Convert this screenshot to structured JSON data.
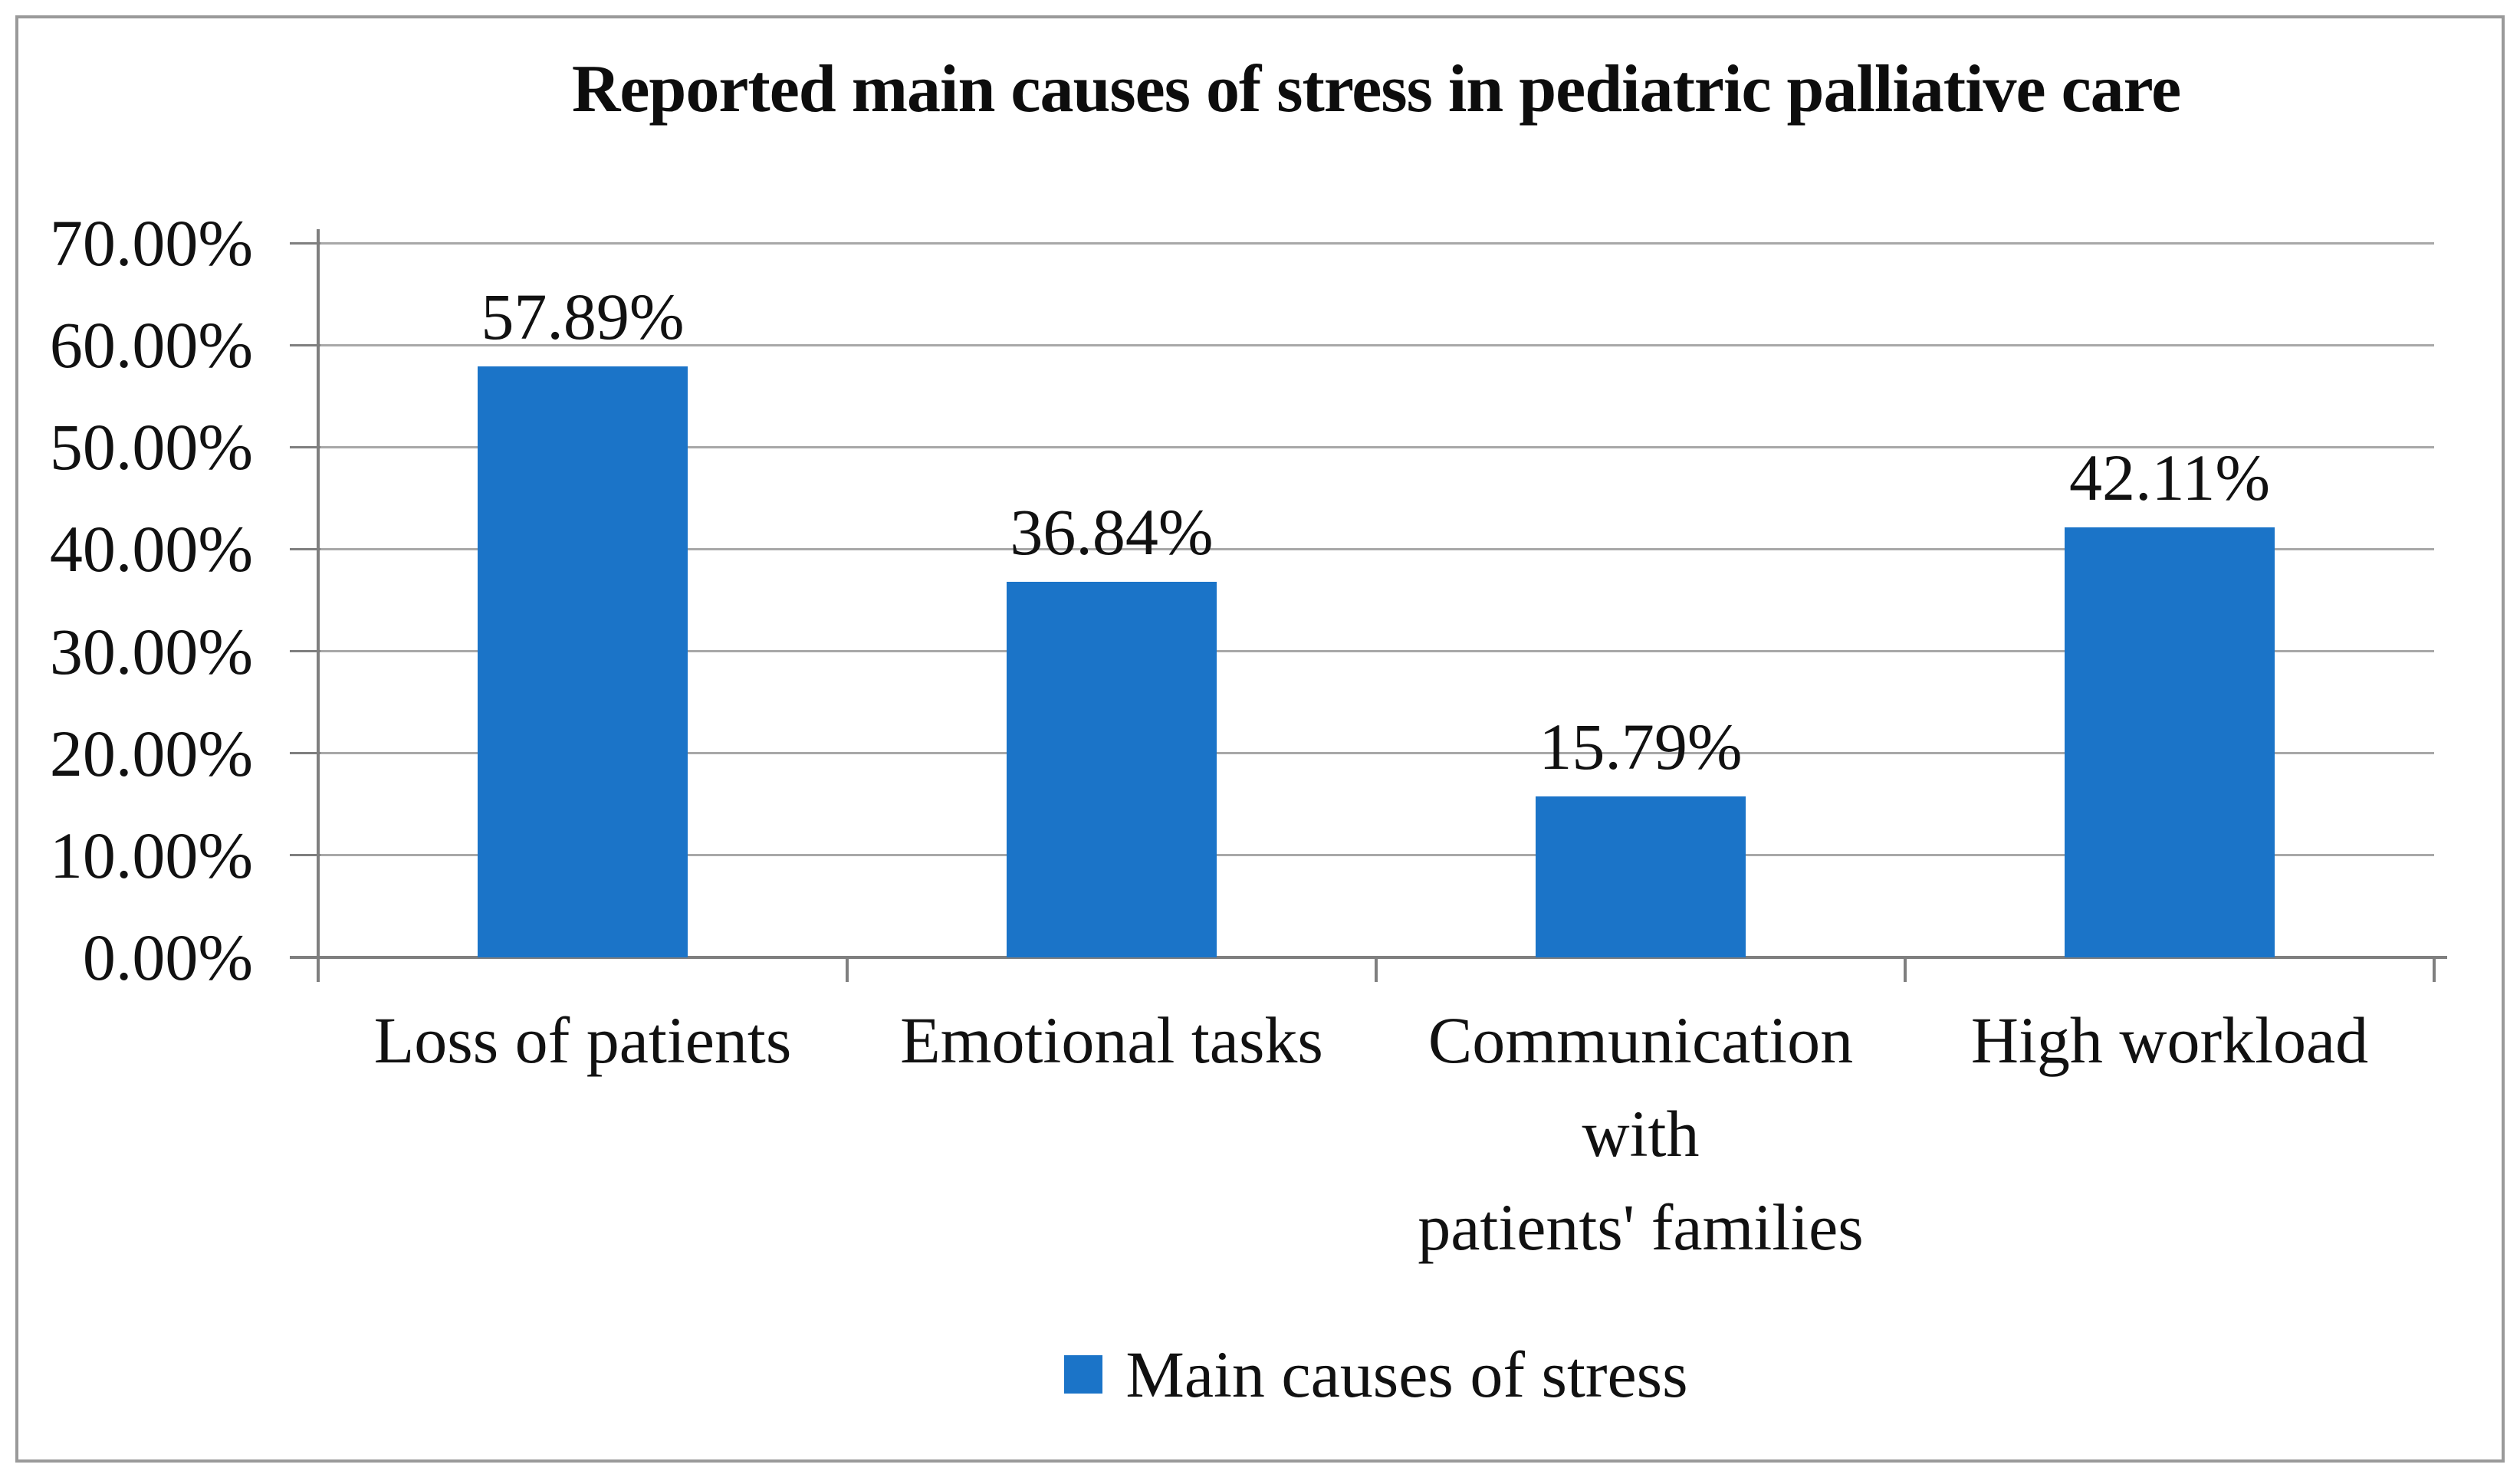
{
  "figure": {
    "title": "Reported main causes of stress in pediatric palliative care",
    "legend_label": "Main causes of stress"
  },
  "colors": {
    "bar": "#1b74c8",
    "gridline": "#a8a8a8",
    "axis": "#7f7f7f",
    "frame_border": "#9a9a9a",
    "text": "#111111",
    "background": "#ffffff"
  },
  "chart_data": {
    "type": "bar",
    "title": "Reported main causes of stress in pediatric palliative care",
    "categories": [
      "Loss of patients",
      "Emotional tasks",
      "Communication with patients' families",
      "High workload"
    ],
    "categories_display": [
      [
        "Loss of patients"
      ],
      [
        "Emotional tasks"
      ],
      [
        "Communication",
        "with",
        "patients' families"
      ],
      [
        "High workload"
      ]
    ],
    "values": [
      57.89,
      36.84,
      15.79,
      42.11
    ],
    "data_labels": [
      "57.89%",
      "36.84%",
      "15.79%",
      "42.11%"
    ],
    "series": [
      {
        "name": "Main causes of stress",
        "values": [
          57.89,
          36.84,
          15.79,
          42.11
        ]
      }
    ],
    "xlabel": "",
    "ylabel": "",
    "ylim": [
      0,
      70
    ],
    "ytick_step": 10,
    "ytick_labels": [
      "0.00%",
      "10.00%",
      "20.00%",
      "30.00%",
      "40.00%",
      "50.00%",
      "60.00%",
      "70.00%"
    ],
    "grid": "horizontal",
    "legend_position": "bottom",
    "bar_color": "#1b74c8"
  }
}
